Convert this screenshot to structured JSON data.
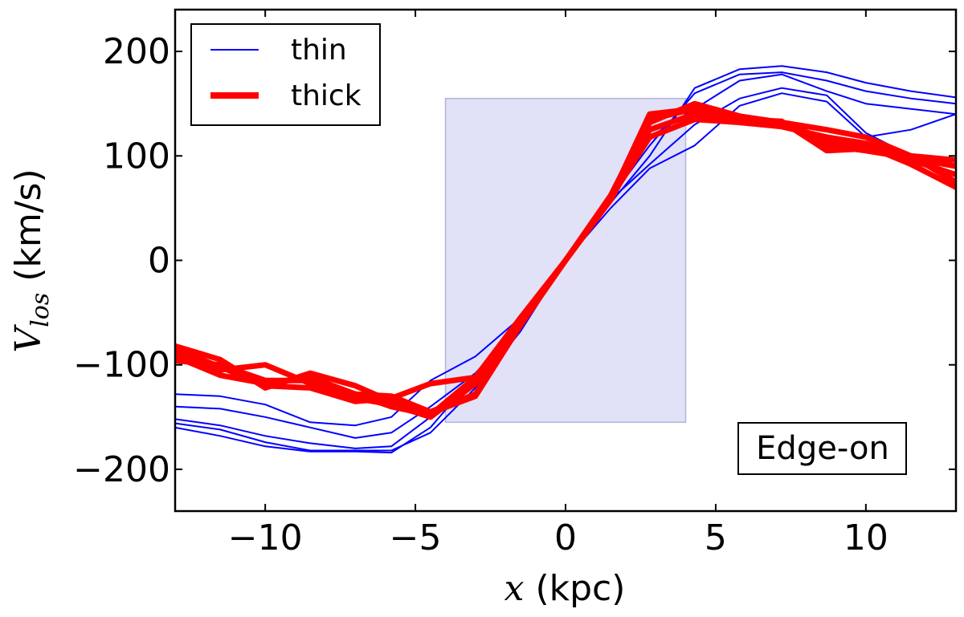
{
  "chart_data": {
    "type": "line",
    "title": "",
    "xlabel": {
      "symbol": "x",
      "unit": "(kpc)"
    },
    "ylabel": {
      "symbol": "V",
      "subscript": "los",
      "unit": "(km/s)"
    },
    "xlim": [
      -13,
      13
    ],
    "ylim": [
      -240,
      240
    ],
    "xticks": [
      -10,
      -5,
      0,
      5,
      10
    ],
    "xtick_labels": [
      "−10",
      "−5",
      "0",
      "5",
      "10"
    ],
    "yticks": [
      -200,
      -100,
      0,
      100,
      200
    ],
    "ytick_labels": [
      "−200",
      "−100",
      "0",
      "100",
      "200"
    ],
    "grid": false,
    "legend": {
      "position": "top-left",
      "entries": [
        {
          "label": "thin",
          "color": "#0000ff",
          "width": "thin"
        },
        {
          "label": "thick",
          "color": "#ff0000",
          "width": "thick"
        }
      ]
    },
    "shaded_region": {
      "x": [
        -4,
        4
      ],
      "y": [
        -155,
        155
      ],
      "color": "#c8c8f0"
    },
    "annotation": {
      "text": "Edge-on",
      "position": "bottom-right"
    },
    "x": [
      -13,
      -11.5,
      -10,
      -8.5,
      -7,
      -5.8,
      -4.5,
      -3,
      -1.5,
      0,
      1.5,
      2.8,
      4.3,
      5.8,
      7.2,
      8.7,
      10,
      11.5,
      13
    ],
    "series": [
      {
        "group": "thin",
        "values": [
          -128,
          -130,
          -138,
          -155,
          -158,
          -150,
          -115,
          -92,
          -55,
          0,
          55,
          100,
          165,
          183,
          186,
          180,
          170,
          162,
          156
        ]
      },
      {
        "group": "thin",
        "values": [
          -140,
          -142,
          -150,
          -160,
          -170,
          -165,
          -140,
          -108,
          -62,
          0,
          60,
          110,
          160,
          178,
          180,
          172,
          162,
          155,
          150
        ]
      },
      {
        "group": "thin",
        "values": [
          -152,
          -158,
          -168,
          -175,
          -180,
          -178,
          -150,
          -118,
          -65,
          0,
          62,
          118,
          145,
          172,
          178,
          162,
          150,
          145,
          140
        ]
      },
      {
        "group": "thin",
        "values": [
          -156,
          -162,
          -174,
          -182,
          -182,
          -182,
          -165,
          -122,
          -68,
          0,
          58,
          92,
          130,
          155,
          165,
          158,
          122,
          100,
          92
        ]
      },
      {
        "group": "thin",
        "values": [
          -160,
          -168,
          -178,
          -183,
          -183,
          -184,
          -160,
          -110,
          -58,
          0,
          50,
          88,
          110,
          148,
          160,
          152,
          118,
          125,
          140
        ]
      },
      {
        "group": "thick",
        "values": [
          -82,
          -95,
          -122,
          -108,
          -120,
          -135,
          -146,
          -130,
          -62,
          0,
          60,
          140,
          145,
          135,
          133,
          105,
          107,
          100,
          96
        ]
      },
      {
        "group": "thick",
        "values": [
          -90,
          -105,
          -100,
          -118,
          -132,
          -138,
          -150,
          -118,
          -60,
          0,
          58,
          132,
          150,
          138,
          132,
          125,
          118,
          100,
          75
        ]
      },
      {
        "group": "thick",
        "values": [
          -96,
          -100,
          -115,
          -115,
          -128,
          -140,
          -148,
          -112,
          -58,
          0,
          58,
          125,
          140,
          132,
          132,
          115,
          110,
          92,
          70
        ]
      },
      {
        "group": "thick",
        "values": [
          -85,
          -102,
          -120,
          -122,
          -135,
          -132,
          -118,
          -112,
          -55,
          0,
          60,
          118,
          135,
          132,
          128,
          118,
          112,
          96,
          82
        ]
      },
      {
        "group": "thick",
        "values": [
          -92,
          -110,
          -118,
          -112,
          -128,
          -130,
          -145,
          -128,
          -62,
          0,
          62,
          135,
          145,
          133,
          131,
          110,
          105,
          98,
          90
        ]
      }
    ]
  }
}
